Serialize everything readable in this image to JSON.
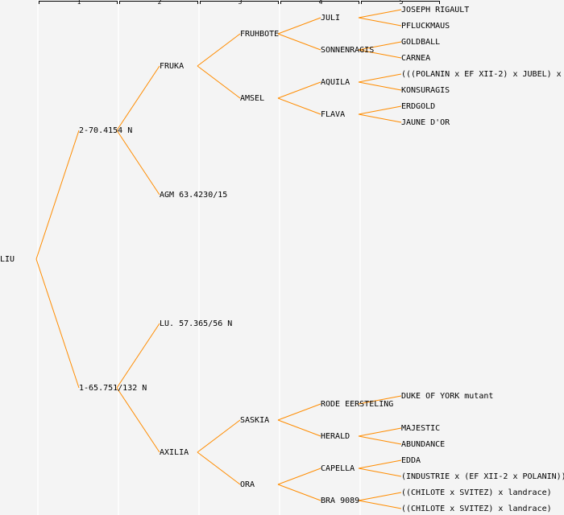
{
  "colors": {
    "background": "#f4f4f4",
    "link": "#ff8c00",
    "divider": "#ffffff",
    "header": "#000000"
  },
  "generations": [
    "1",
    "2",
    "3",
    "4",
    "5"
  ],
  "tree": {
    "label": "LIU",
    "children": [
      {
        "label": "2-70.4154 N",
        "children": [
          {
            "label": "FRUKA",
            "children": [
              {
                "label": "FRUHBOTE",
                "children": [
                  {
                    "label": "JULI",
                    "children": [
                      {
                        "label": "JOSEPH RIGAULT"
                      },
                      {
                        "label": "PFLUCKMAUS"
                      }
                    ]
                  },
                  {
                    "label": "SONNENRAGIS",
                    "children": [
                      {
                        "label": "GOLDBALL"
                      },
                      {
                        "label": "CARNEA"
                      }
                    ]
                  }
                ]
              },
              {
                "label": "AMSEL",
                "children": [
                  {
                    "label": "AQUILA",
                    "children": [
                      {
                        "label": "(((POLANIN x EF XII-2) x JUBEL) x"
                      },
                      {
                        "label": "KONSURAGIS"
                      }
                    ]
                  },
                  {
                    "label": "FLAVA",
                    "children": [
                      {
                        "label": "ERDGOLD"
                      },
                      {
                        "label": "JAUNE D'OR"
                      }
                    ]
                  }
                ]
              }
            ]
          },
          {
            "label": "AGM 63.4230/15"
          }
        ]
      },
      {
        "label": "1-65.751/132 N",
        "children": [
          {
            "label": "LU. 57.365/56 N"
          },
          {
            "label": "AXILIA",
            "children": [
              {
                "label": "SASKIA",
                "children": [
                  {
                    "label": "RODE EERSTELING",
                    "children": [
                      {
                        "label": "DUKE OF YORK mutant"
                      }
                    ]
                  },
                  {
                    "label": "HERALD",
                    "children": [
                      {
                        "label": "MAJESTIC"
                      },
                      {
                        "label": "ABUNDANCE"
                      }
                    ]
                  }
                ]
              },
              {
                "label": "ORA",
                "children": [
                  {
                    "label": "CAPELLA",
                    "children": [
                      {
                        "label": "EDDA"
                      },
                      {
                        "label": "(INDUSTRIE x (EF XII-2 x POLANIN))"
                      }
                    ]
                  },
                  {
                    "label": "BRA 9089",
                    "children": [
                      {
                        "label": "((CHILOTE x SVITEZ) x landrace)"
                      },
                      {
                        "label": "((CHILOTE x SVITEZ) x landrace)"
                      }
                    ]
                  }
                ]
              }
            ]
          }
        ]
      }
    ]
  }
}
